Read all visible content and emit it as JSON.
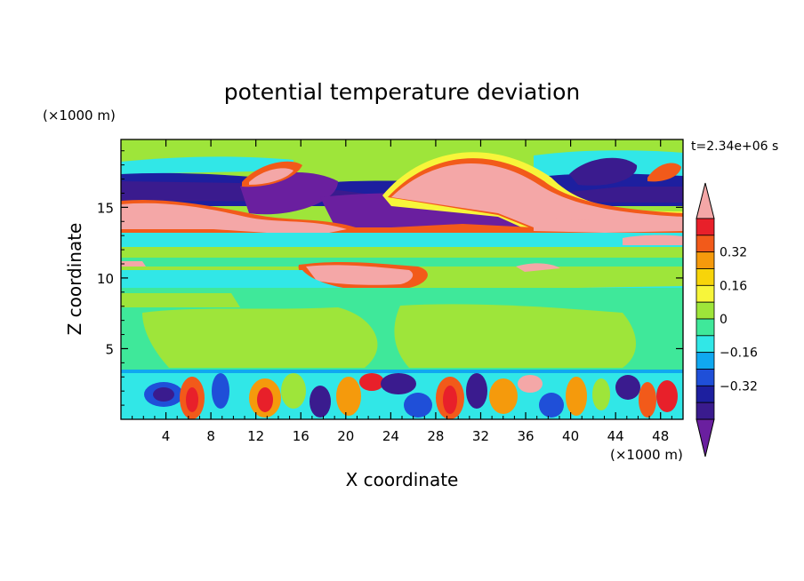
{
  "chart_data": {
    "type": "heatmap",
    "title": "potential temperature deviation",
    "xlabel": "X coordinate",
    "ylabel": "Z coordinate",
    "x_unit": "(×1000 m)",
    "y_unit": "(×1000 m)",
    "time_label": "t=2.34e+06 s",
    "xlim": [
      0,
      50
    ],
    "ylim": [
      0,
      19.8
    ],
    "x_ticks": [
      4,
      8,
      12,
      16,
      20,
      24,
      28,
      32,
      36,
      40,
      44,
      48
    ],
    "y_ticks": [
      5,
      10,
      15
    ],
    "colorbar": {
      "levels": [
        -0.48,
        -0.4,
        -0.32,
        -0.24,
        -0.16,
        -0.08,
        0,
        0.08,
        0.16,
        0.24,
        0.32,
        0.4,
        0.48
      ],
      "labeled_ticks": [
        0.32,
        0.16,
        0,
        -0.16,
        -0.32
      ],
      "tick_labels": [
        "0.32",
        "0.16",
        "0",
        "−0.16",
        "−0.32"
      ],
      "colors": [
        "#f4a7a7",
        "#e8202a",
        "#f25a1a",
        "#f59a0c",
        "#f7d40a",
        "#f7f53a",
        "#9ee53a",
        "#3fe89a",
        "#31e7e7",
        "#10a8f0",
        "#1f4fd8",
        "#1d1f9f",
        "#3a1b8e",
        "#6a1f9f"
      ],
      "extend": "both"
    },
    "regions": [
      {
        "name": "top band",
        "z": [
          18.5,
          19.8
        ],
        "value": 0.02
      },
      {
        "name": "upper dark band",
        "z": [
          15.8,
          17.2
        ],
        "value": -0.45
      },
      {
        "name": "central warm dome",
        "x_center": 30,
        "z_top": 18.4,
        "value": 0.48
      },
      {
        "name": "warm layer",
        "z": [
          13.8,
          15.6
        ],
        "value": 0.45
      },
      {
        "name": "cyan layer",
        "z": [
          12.4,
          13.3
        ],
        "value": -0.1
      },
      {
        "name": "warm patches",
        "z": [
          10.6,
          11.2
        ],
        "value": 0.45
      },
      {
        "name": "cyan stripe",
        "z": [
          9.6,
          10.6
        ],
        "value": -0.1
      },
      {
        "name": "mid troposphere",
        "z": [
          3.6,
          9.6
        ],
        "value": 0.04
      },
      {
        "name": "boundary layer waves",
        "z": [
          0,
          3.6
        ],
        "value": "alternating -0.48 to 0.48"
      }
    ]
  }
}
